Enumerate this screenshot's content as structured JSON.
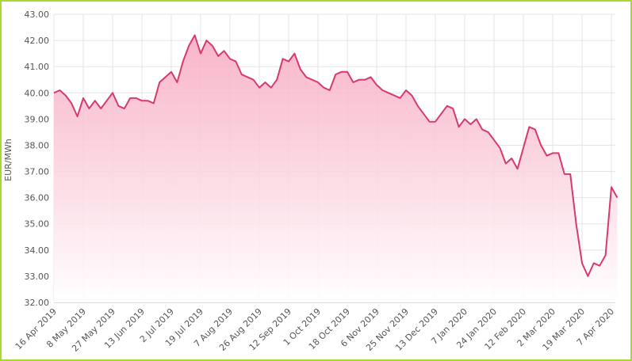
{
  "chart_data": {
    "type": "line",
    "y_label": "EUR/MWh",
    "categories": [
      "16 Apr 2019",
      null,
      null,
      null,
      null,
      "8 May 2019",
      null,
      null,
      null,
      null,
      "27 May 2019",
      null,
      null,
      null,
      null,
      "13 Jun 2019",
      null,
      null,
      null,
      null,
      "2 Jul 2019",
      null,
      null,
      null,
      null,
      "19 Jul 2019",
      null,
      null,
      null,
      null,
      "7 Aug 2019",
      null,
      null,
      null,
      null,
      "26 Aug 2019",
      null,
      null,
      null,
      null,
      "12 Sep 2019",
      null,
      null,
      null,
      null,
      "1 Oct 2019",
      null,
      null,
      null,
      null,
      "18 Oct 2019",
      null,
      null,
      null,
      null,
      "6 Nov 2019",
      null,
      null,
      null,
      null,
      "25 Nov 2019",
      null,
      null,
      null,
      null,
      "13 Dec 2019",
      null,
      null,
      null,
      null,
      "7 Jan 2020",
      null,
      null,
      null,
      null,
      "24 Jan 2020",
      null,
      null,
      null,
      null,
      "12 Feb 2020",
      null,
      null,
      null,
      null,
      "2 Mar 2020",
      null,
      null,
      null,
      null,
      "19 Mar 2020",
      null,
      null,
      null,
      null,
      "7 Apr 2020",
      null
    ],
    "values": [
      40.0,
      40.1,
      39.9,
      39.6,
      39.1,
      39.8,
      39.4,
      39.7,
      39.4,
      39.7,
      40.0,
      39.5,
      39.4,
      39.8,
      39.8,
      39.7,
      39.7,
      39.6,
      40.4,
      40.6,
      40.8,
      40.4,
      41.2,
      41.8,
      42.2,
      41.5,
      42.0,
      41.8,
      41.4,
      41.6,
      41.3,
      41.2,
      40.7,
      40.6,
      40.5,
      40.2,
      40.4,
      40.2,
      40.5,
      41.3,
      41.2,
      41.5,
      40.9,
      40.6,
      40.5,
      40.4,
      40.2,
      40.1,
      40.7,
      40.8,
      40.8,
      40.4,
      40.5,
      40.5,
      40.6,
      40.3,
      40.1,
      40.0,
      39.9,
      39.8,
      40.1,
      39.9,
      39.5,
      39.2,
      38.9,
      38.9,
      39.2,
      39.5,
      39.4,
      38.7,
      39.0,
      38.8,
      39.0,
      38.6,
      38.5,
      38.2,
      37.9,
      37.3,
      37.5,
      37.1,
      37.9,
      38.7,
      38.6,
      38.0,
      37.6,
      37.7,
      37.7,
      36.9,
      36.9,
      35.0,
      33.5,
      33.0,
      33.5,
      33.4,
      33.8,
      36.4,
      36.0
    ],
    "color": "#d63a6e",
    "ylim": [
      32,
      43
    ],
    "yticks": [
      {
        "value": 32,
        "label": "32.00"
      },
      {
        "value": 33,
        "label": "33.00"
      },
      {
        "value": 34,
        "label": "34.00"
      },
      {
        "value": 35,
        "label": "35.00"
      },
      {
        "value": 36,
        "label": "36.00"
      },
      {
        "value": 37,
        "label": "37.00"
      },
      {
        "value": 38,
        "label": "38.00"
      },
      {
        "value": 39,
        "label": "39.00"
      },
      {
        "value": 40,
        "label": "40.00"
      },
      {
        "value": 41,
        "label": "41.00"
      },
      {
        "value": 42,
        "label": "42.00"
      },
      {
        "value": 43,
        "label": "43.00"
      }
    ],
    "grid": true
  }
}
